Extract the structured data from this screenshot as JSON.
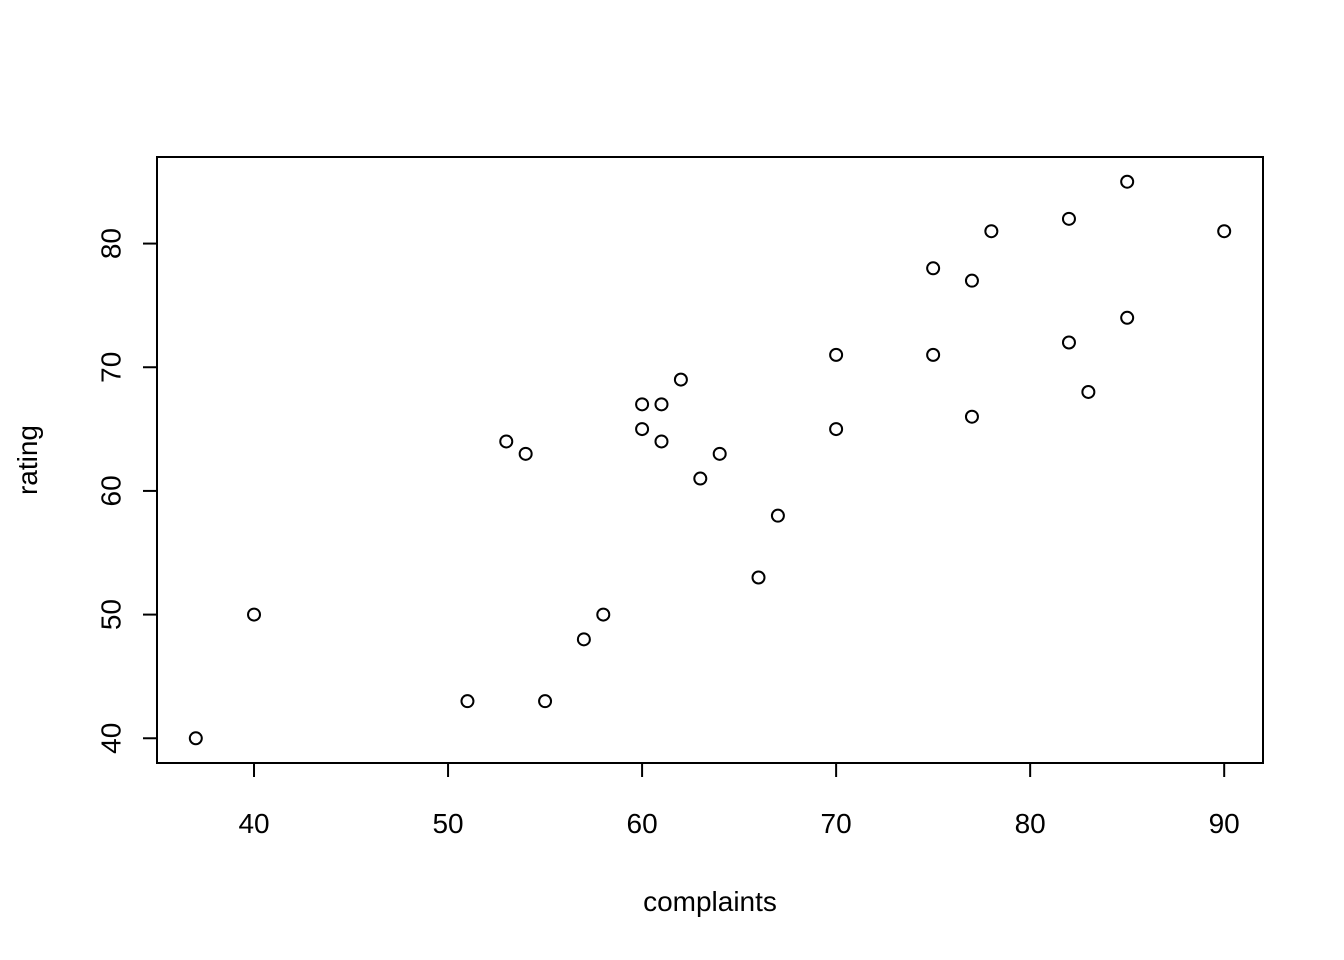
{
  "chart_data": {
    "type": "scatter",
    "title": "",
    "xlabel": "complaints",
    "ylabel": "rating",
    "xlim": [
      35,
      92
    ],
    "ylim": [
      38,
      87
    ],
    "xticks": [
      40,
      50,
      60,
      70,
      80,
      90
    ],
    "yticks": [
      40,
      50,
      60,
      70,
      80
    ],
    "xtick_labels": [
      "40",
      "50",
      "60",
      "70",
      "80",
      "90"
    ],
    "ytick_labels": [
      "40",
      "50",
      "60",
      "70",
      "80"
    ],
    "grid": false,
    "marker": "open-circle",
    "point_color": "#000000",
    "points": [
      {
        "x": 37,
        "y": 40
      },
      {
        "x": 40,
        "y": 50
      },
      {
        "x": 51,
        "y": 43
      },
      {
        "x": 53,
        "y": 64
      },
      {
        "x": 54,
        "y": 63
      },
      {
        "x": 55,
        "y": 43
      },
      {
        "x": 57,
        "y": 48
      },
      {
        "x": 58,
        "y": 50
      },
      {
        "x": 60,
        "y": 67
      },
      {
        "x": 60,
        "y": 65
      },
      {
        "x": 61,
        "y": 67
      },
      {
        "x": 61,
        "y": 64
      },
      {
        "x": 62,
        "y": 69
      },
      {
        "x": 63,
        "y": 61
      },
      {
        "x": 64,
        "y": 63
      },
      {
        "x": 66,
        "y": 53
      },
      {
        "x": 67,
        "y": 58
      },
      {
        "x": 70,
        "y": 71
      },
      {
        "x": 70,
        "y": 65
      },
      {
        "x": 75,
        "y": 78
      },
      {
        "x": 75,
        "y": 71
      },
      {
        "x": 77,
        "y": 77
      },
      {
        "x": 77,
        "y": 66
      },
      {
        "x": 78,
        "y": 81
      },
      {
        "x": 82,
        "y": 82
      },
      {
        "x": 82,
        "y": 72
      },
      {
        "x": 83,
        "y": 68
      },
      {
        "x": 85,
        "y": 85
      },
      {
        "x": 85,
        "y": 74
      },
      {
        "x": 90,
        "y": 81
      }
    ]
  }
}
